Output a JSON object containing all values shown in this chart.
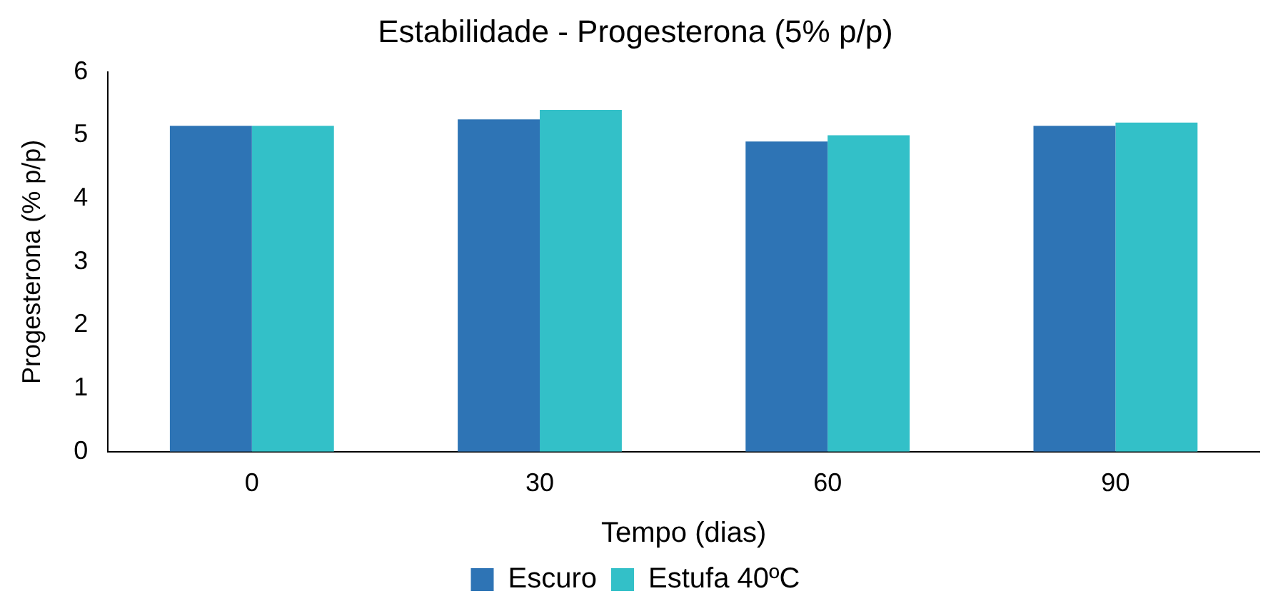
{
  "chart_data": {
    "type": "bar",
    "title": "Estabilidade - Progesterona (5% p/p)",
    "xlabel": "Tempo (dias)",
    "ylabel": "Progesterona (% p/p)",
    "categories": [
      "0",
      "30",
      "60",
      "90"
    ],
    "series": [
      {
        "name": "Escuro",
        "color": "#2e74b5",
        "values": [
          5.15,
          5.25,
          4.9,
          5.15
        ]
      },
      {
        "name": "Estufa 40ºC",
        "color": "#33c0c8",
        "values": [
          5.15,
          5.4,
          5.0,
          5.2
        ]
      }
    ],
    "ylim": [
      0,
      6
    ],
    "yticks": [
      0,
      1,
      2,
      3,
      4,
      5,
      6
    ],
    "grid": false,
    "legend": "bottom"
  }
}
